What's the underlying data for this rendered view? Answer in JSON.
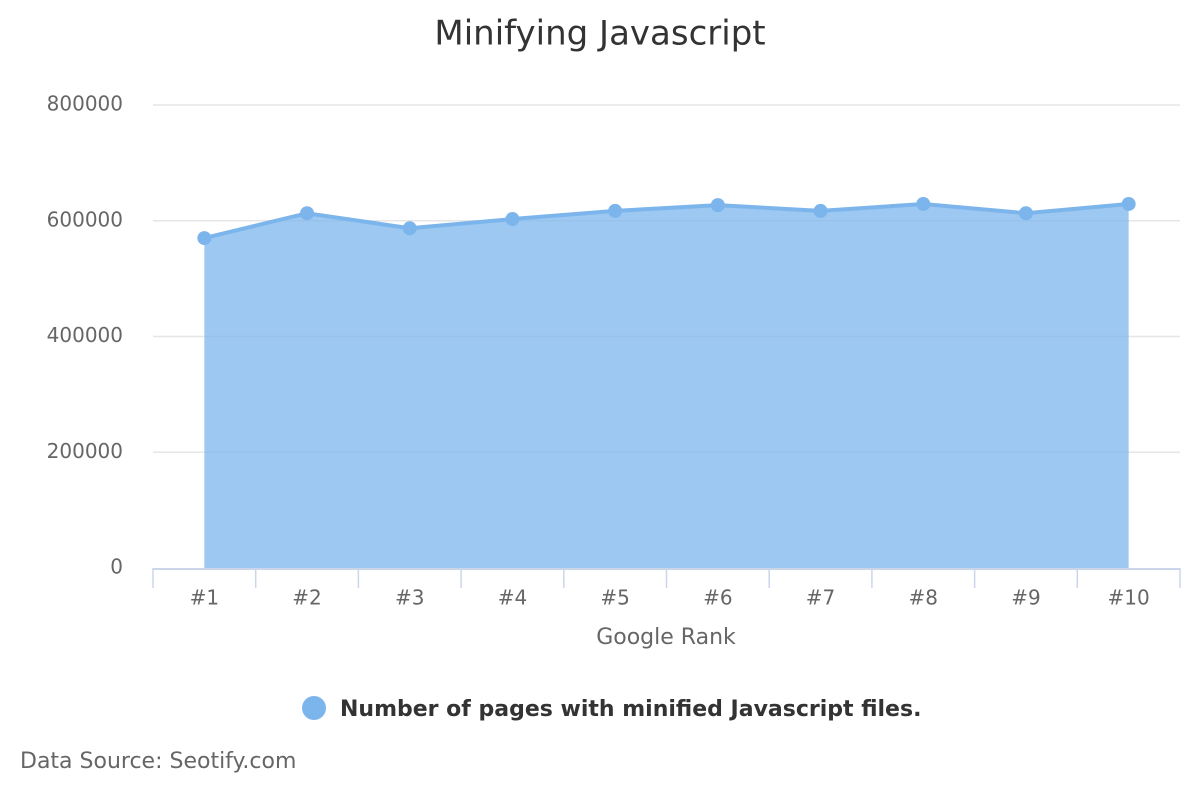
{
  "chart_data": {
    "type": "area",
    "title": "Minifying Javascript",
    "x_label": "Google Rank",
    "categories": [
      "#1",
      "#2",
      "#3",
      "#4",
      "#5",
      "#6",
      "#7",
      "#8",
      "#9",
      "#10"
    ],
    "series": [
      {
        "name": "Number of pages with minified Javascript files.",
        "color": "#7cb5ec",
        "values": [
          570000,
          613000,
          587000,
          603000,
          617000,
          627000,
          617000,
          629000,
          613000,
          629000
        ]
      }
    ],
    "ylim": [
      0,
      800000
    ],
    "yticks": [
      0,
      200000,
      400000,
      600000,
      800000
    ],
    "grid": true,
    "legend": "bottom",
    "credits": "Data Source: Seotify.com"
  }
}
